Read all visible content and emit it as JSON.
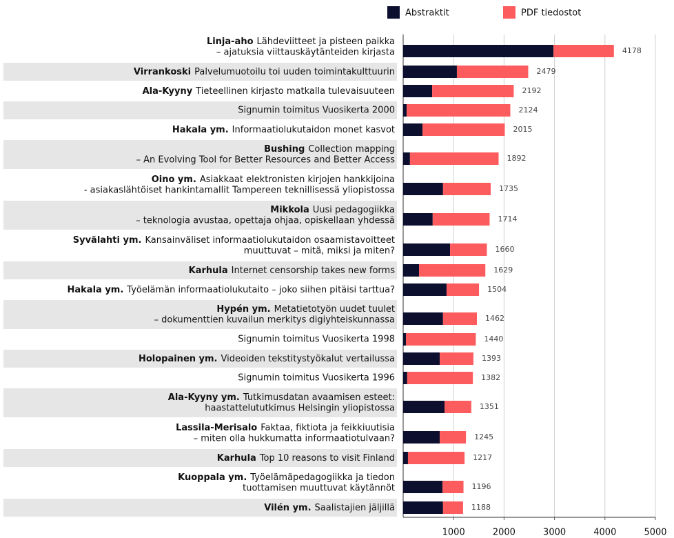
{
  "chart_data": {
    "type": "stacked-bar-horizontal",
    "categories": [
      {
        "author": "Linja-aho",
        "title": [
          "Lähdeviitteet ja pisteen paikka",
          "– ajatuksia viittauskäytänteiden kirjasta"
        ]
      },
      {
        "author": "Virrankoski",
        "title": [
          "Palvelumuotoilu toi uuden toimintakulttuurin"
        ]
      },
      {
        "author": "Ala-Kyyny",
        "title": [
          "Tieteellinen kirjasto matkalla tulevaisuuteen"
        ]
      },
      {
        "title": [
          "Signumin toimitus Vuosikerta 2000"
        ]
      },
      {
        "author": "Hakala ym.",
        "title": [
          "Informaatiolukutaidon monet kasvot"
        ]
      },
      {
        "author": "Bushing",
        "title": [
          "Collection mapping",
          "– An Evolving Tool for Better Resources and Better Access"
        ]
      },
      {
        "author": "Oino ym.",
        "title": [
          "Asiakkaat elektronisten kirjojen hankkijoina",
          "- asiakaslähtöiset hankintamallit Tampereen teknillisessä yliopistossa"
        ]
      },
      {
        "author": "Mikkola",
        "title": [
          "Uusi pedagogiikka",
          "– teknologia avustaa, opettaja ohjaa, opiskellaan yhdessä"
        ]
      },
      {
        "author": "Syvälahti ym.",
        "title": [
          "Kansainväliset informaatiolukutaidon osaamistavoitteet",
          "muuttuvat – mitä, miksi ja miten?"
        ]
      },
      {
        "author": "Karhula",
        "title": [
          "Internet censorship takes new forms"
        ]
      },
      {
        "author": "Hakala ym.",
        "title": [
          "Työelämän informaatiolukutaito – joko siihen pitäisi tarttua?"
        ]
      },
      {
        "author": "Hypén ym.",
        "title": [
          "Metatietotyön uudet tuulet",
          "– dokumenttien kuvailun merkitys digiyhteiskunnassa"
        ]
      },
      {
        "title": [
          "Signumin toimitus Vuosikerta 1998"
        ]
      },
      {
        "author": "Holopainen ym.",
        "title": [
          "Videoiden tekstitystyökalut vertailussa"
        ]
      },
      {
        "title": [
          "Signumin toimitus Vuosikerta 1996"
        ]
      },
      {
        "author": "Ala-Kyyny ym.",
        "title": [
          "Tutkimusdatan avaamisen esteet:",
          "haastattelututkimus Helsingin yliopistossa"
        ]
      },
      {
        "author": "Lassila-Merisalo",
        "title": [
          "Faktaa, fiktiota ja feikkiuutisia",
          "– miten olla hukkumatta informaatiotulvaan?"
        ]
      },
      {
        "author": "Karhula",
        "title": [
          "Top 10 reasons to visit Finland"
        ]
      },
      {
        "author": "Kuoppala ym.",
        "title": [
          "Työelämäpedagogiikka ja tiedon",
          "tuottamisen muuttuvat käytännöt"
        ]
      },
      {
        "author": "Vilén ym.",
        "title": [
          "Saalistajien jäljillä"
        ]
      }
    ],
    "series": [
      {
        "name": "Abstraktit",
        "color": "#0c0f2e",
        "values": [
          2980,
          1065,
          575,
          70,
          385,
          135,
          790,
          585,
          930,
          315,
          860,
          790,
          55,
          725,
          80,
          820,
          725,
          95,
          780,
          790
        ]
      },
      {
        "name": "PDF tiedostot",
        "color": "#fd5c5f",
        "values": [
          1198,
          1414,
          1617,
          2054,
          1630,
          1757,
          945,
          1129,
          730,
          1314,
          644,
          672,
          1385,
          668,
          1302,
          531,
          520,
          1122,
          416,
          398
        ]
      }
    ],
    "totals": [
      4178,
      2479,
      2192,
      2124,
      2015,
      1892,
      1735,
      1714,
      1660,
      1629,
      1504,
      1462,
      1440,
      1393,
      1382,
      1351,
      1245,
      1217,
      1196,
      1188
    ],
    "xlim": [
      0,
      5000
    ],
    "xticks": [
      1000,
      2000,
      3000,
      4000,
      5000
    ],
    "grid": true,
    "legend": "top-right"
  }
}
